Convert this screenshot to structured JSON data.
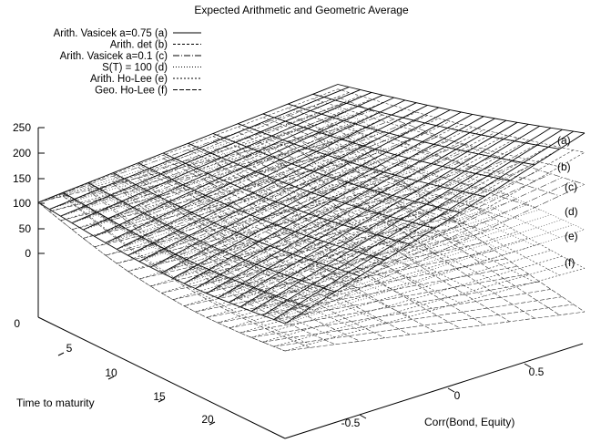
{
  "chart_data": {
    "type": "surface",
    "title": "Expected Arithmetic and Geometric Average",
    "xlabel": "Time to maturity",
    "ylabel": "Corr(Bond, Equity)",
    "zlabel": "",
    "x_ticks": [
      "5",
      "10",
      "15",
      "20"
    ],
    "y_ticks": [
      "-0.5",
      "0",
      "0.5"
    ],
    "z_ticks": [
      "0",
      "50",
      "100",
      "150",
      "200",
      "250"
    ],
    "base_tick": "0",
    "xlim": [
      0,
      24
    ],
    "ylim": [
      -1,
      1
    ],
    "legend_position": "top-left",
    "series": [
      {
        "name": "Arith. Vasicek a=0.75 (a)",
        "label": "(a)",
        "dash": "",
        "rise": 1.0
      },
      {
        "name": "Arith. det (b)",
        "label": "(b)",
        "dash": "3,2",
        "rise": 0.8
      },
      {
        "name": "Arith. Vasicek a=0.1 (c)",
        "label": "(c)",
        "dash": "7,2,1,2",
        "rise": 0.47
      },
      {
        "name": "S(T) = 100 (d)",
        "label": "(d)",
        "dash": "1,2",
        "rise": 0.0
      },
      {
        "name": "Arith. Ho-Lee (e)",
        "label": "(e)",
        "dash": "2,2",
        "rise": -0.4
      },
      {
        "name": "Geo. Ho-Lee (f)",
        "label": "(f)",
        "dash": "5,2",
        "rise": -0.85
      }
    ],
    "surface_start_value": 100,
    "right_edge_values": [
      200,
      182,
      154,
      129,
      105,
      80
    ]
  }
}
